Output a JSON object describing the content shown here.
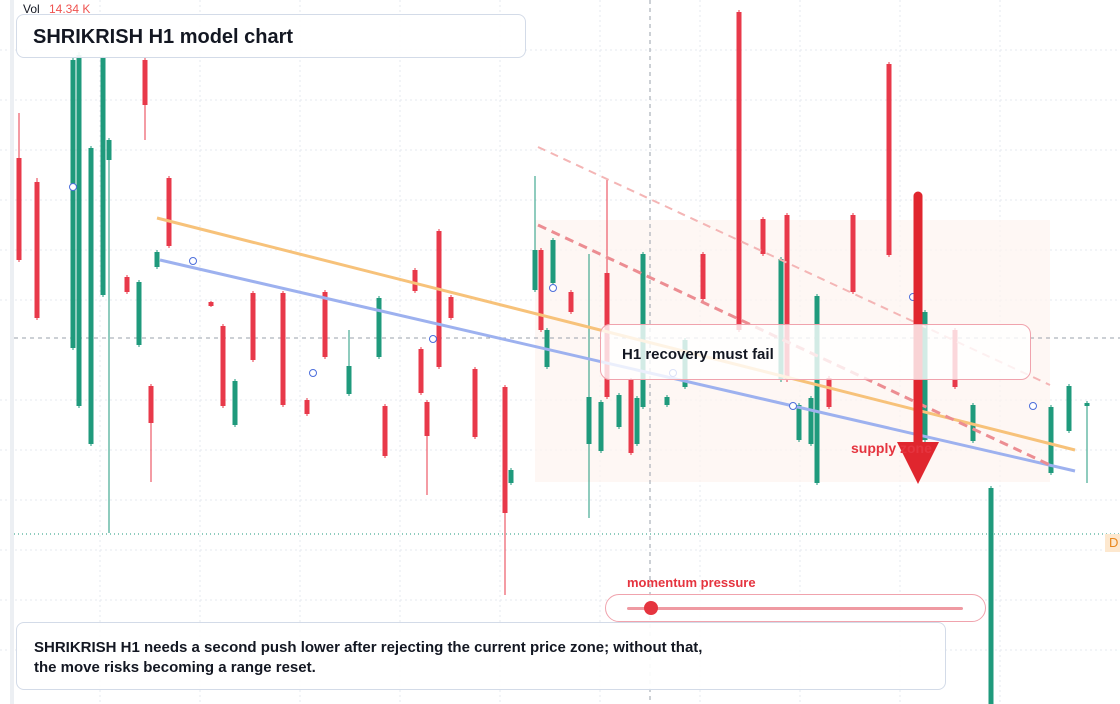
{
  "chart_data": {
    "type": "candlestick",
    "title": "SHRIKRISH H1 model chart",
    "volume_label": "Vol",
    "volume_value": "14.34 K",
    "callout": "H1 recovery must fail",
    "zone_label": "supply zone",
    "slider_label": "momentum pressure",
    "note": [
      "SHRIKRISH H1 needs a second push lower after rejecting the current price zone; without that,",
      "the move risks becoming a range reset."
    ],
    "price_label": "D",
    "up_color": "#1f9a7c",
    "down_color": "#e8394a",
    "xlim": [
      0,
      180
    ],
    "ylim": [
      0,
      704
    ],
    "x": [
      1,
      4,
      10,
      11,
      13,
      15,
      16,
      19,
      21,
      22,
      23,
      24,
      26,
      33,
      35,
      37,
      40,
      45,
      49,
      52,
      56,
      61,
      62,
      67,
      68,
      69,
      71,
      73,
      77,
      82,
      83,
      87,
      88,
      89,
      90,
      93,
      96,
      98,
      99,
      101,
      103,
      104,
      105,
      109,
      112,
      115,
      121,
      125,
      128,
      129,
      131,
      133,
      134,
      136,
      140,
      146,
      152,
      157,
      160,
      163,
      173,
      176,
      179
    ],
    "open": [
      546,
      522,
      356,
      298,
      260,
      409,
      544,
      427,
      359,
      644,
      318,
      437,
      526,
      402,
      378,
      279,
      411,
      411,
      304,
      412,
      310,
      347,
      298,
      434,
      355,
      302,
      473,
      407,
      335,
      317,
      221,
      414,
      454,
      337,
      421,
      412,
      260,
      253,
      431,
      277,
      324,
      260,
      297,
      299,
      317,
      450,
      692,
      485,
      324,
      489,
      264,
      260,
      221,
      326,
      489,
      640,
      264,
      374,
      263,
      0,
      231,
      273,
      298
    ],
    "high": [
      591,
      526,
      646,
      652,
      558,
      648,
      566,
      429,
      424,
      646,
      320,
      454,
      528,
      403,
      380,
      325,
      413,
      413,
      306,
      414,
      374,
      408,
      300,
      436,
      357,
      304,
      475,
      409,
      337,
      319,
      236,
      528,
      456,
      376,
      466,
      414,
      450,
      304,
      524,
      311,
      326,
      308,
      452,
      309,
      366,
      452,
      694,
      487,
      447,
      491,
      301,
      308,
      410,
      328,
      491,
      642,
      394,
      376,
      301,
      218,
      299,
      320,
      303
    ],
    "low": [
      442,
      384,
      354,
      296,
      258,
      407,
      171,
      410,
      357,
      564,
      222,
      435,
      456,
      397,
      296,
      277,
      342,
      297,
      288,
      345,
      308,
      345,
      246,
      411,
      309,
      209,
      335,
      384,
      265,
      109,
      219,
      412,
      372,
      335,
      419,
      390,
      186,
      251,
      305,
      275,
      249,
      258,
      295,
      297,
      315,
      403,
      372,
      448,
      322,
      322,
      262,
      258,
      219,
      295,
      410,
      447,
      262,
      315,
      261,
      0,
      229,
      271,
      221
    ],
    "close": [
      444,
      386,
      644,
      649,
      556,
      646,
      564,
      412,
      422,
      599,
      281,
      452,
      458,
      398,
      298,
      323,
      344,
      299,
      290,
      347,
      338,
      406,
      248,
      413,
      311,
      268,
      337,
      386,
      267,
      191,
      234,
      454,
      374,
      374,
      464,
      392,
      307,
      302,
      307,
      309,
      251,
      306,
      450,
      307,
      364,
      405,
      374,
      450,
      445,
      324,
      299,
      306,
      408,
      297,
      412,
      449,
      392,
      317,
      299,
      216,
      297,
      318,
      301
    ]
  }
}
